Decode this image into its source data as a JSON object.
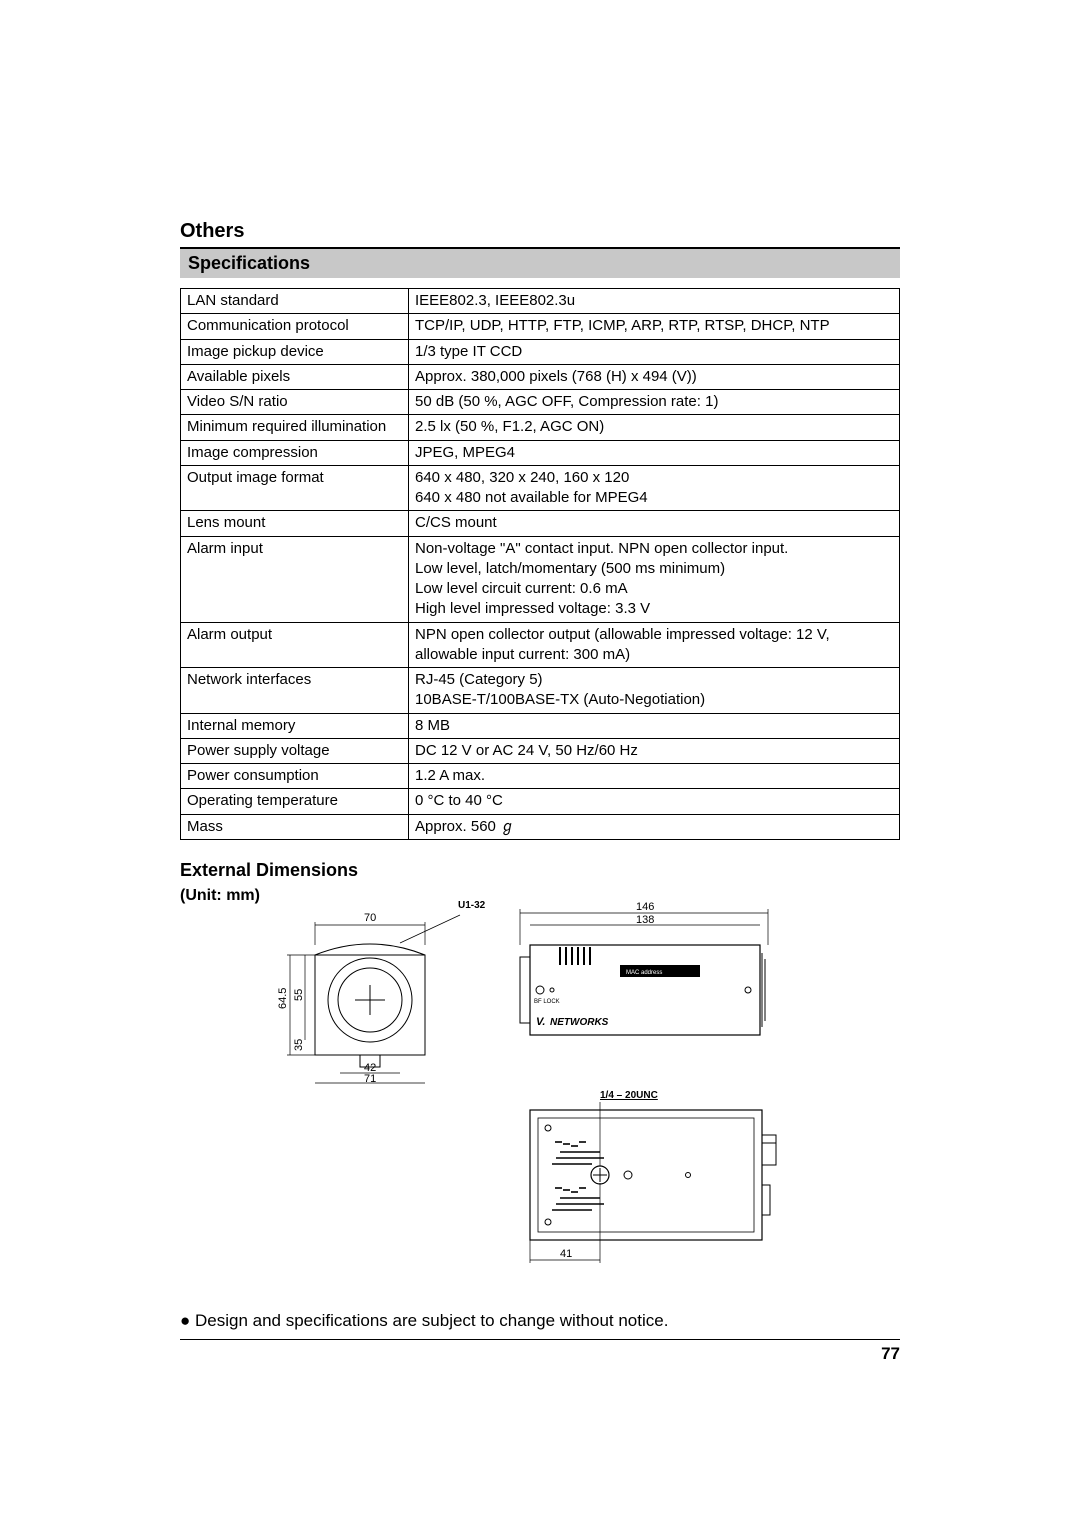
{
  "chapter_title": "Others",
  "section1_title": "Specifications",
  "spec_rows": [
    {
      "label": "LAN standard",
      "value": "IEEE802.3, IEEE802.3u"
    },
    {
      "label": "Communication protocol",
      "value": "TCP/IP, UDP, HTTP, FTP, ICMP, ARP, RTP, RTSP, DHCP, NTP"
    },
    {
      "label": "Image pickup device",
      "value": "1/3 type IT CCD"
    },
    {
      "label": "Available pixels",
      "value": "Approx. 380,000 pixels (768 (H) x 494 (V))"
    },
    {
      "label": "Video S/N ratio",
      "value": "50 dB (50 %, AGC OFF, Compression rate: 1)"
    },
    {
      "label": "Minimum required illumination",
      "value": "2.5 lx (50 %, F1.2, AGC ON)"
    },
    {
      "label": "Image compression",
      "value": "JPEG, MPEG4"
    },
    {
      "label": "Output image format",
      "value": "640 x 480, 320 x 240, 160 x 120\n640 x 480 not available for MPEG4"
    },
    {
      "label": "Lens mount",
      "value": "C/CS mount"
    },
    {
      "label": "Alarm input",
      "value": "Non-voltage \"A\" contact input.  NPN open collector input.\nLow level, latch/momentary (500 ms minimum)\nLow level circuit current: 0.6 mA\nHigh level impressed voltage: 3.3 V"
    },
    {
      "label": "Alarm output",
      "value": "NPN open collector output (allowable impressed voltage: 12 V, allowable input current: 300 mA)"
    },
    {
      "label": "Network interfaces",
      "value": "RJ-45 (Category 5)\n10BASE-T/100BASE-TX (Auto-Negotiation)"
    },
    {
      "label": "Internal memory",
      "value": "8 MB"
    },
    {
      "label": "Power supply voltage",
      "value": "DC 12 V or AC 24 V, 50 Hz/60 Hz"
    },
    {
      "label": "Power consumption",
      "value": "1.2 A max."
    },
    {
      "label": "Operating temperature",
      "value": "0 °C to 40 °C"
    },
    {
      "label": "Mass",
      "value": "Approx. 560 ℊ"
    }
  ],
  "section2_title": "External Dimensions",
  "unit_label": "(Unit: mm)",
  "diagram": {
    "front": {
      "width_label": "70",
      "body_width_label": "71",
      "lens_width_label": "42",
      "height_label": "64.5",
      "upper_height_label": "55",
      "lower_height_label": "35",
      "u_label": "U1-32"
    },
    "side": {
      "total_width_label": "146",
      "body_width_label": "138",
      "mac_label": "MAC address",
      "bf_lock_label": "BF LOCK",
      "networks_label": "NETWORKS",
      "logo_prefix": "V."
    },
    "bottom": {
      "thread_label": "1/4 – 20UNC",
      "offset_label": "41"
    }
  },
  "notice": "● Design and specifications are subject to change without notice.",
  "page_number": "77",
  "colors": {
    "bar_bg": "#c8c8c8",
    "border": "#000000",
    "text": "#000000"
  }
}
